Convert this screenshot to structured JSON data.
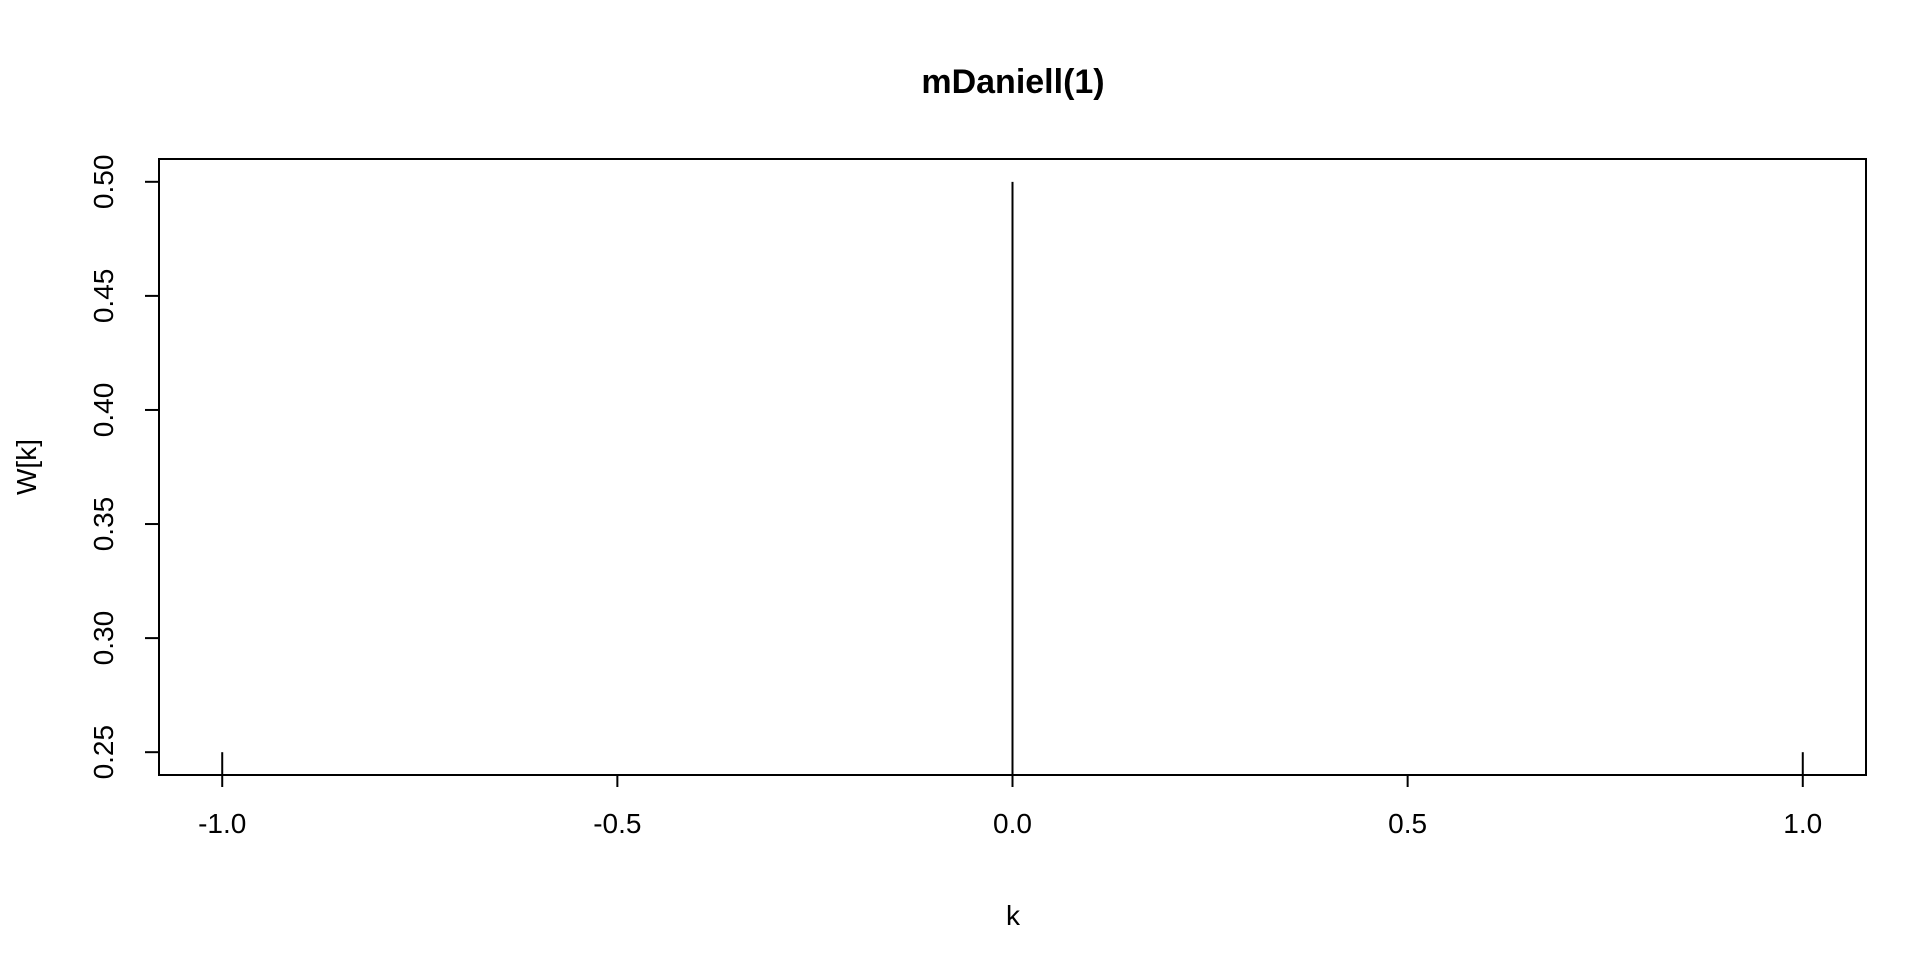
{
  "chart_data": {
    "type": "bar",
    "title": "mDaniell(1)",
    "xlabel": "k",
    "ylabel": "W[k]",
    "x": [
      -1,
      0,
      1
    ],
    "values": [
      0.25,
      0.5,
      0.25
    ],
    "xlim": [
      -1.08,
      1.08
    ],
    "ylim": [
      0.24,
      0.51
    ],
    "xticks": [
      -1.0,
      -0.5,
      0.0,
      0.5,
      1.0
    ],
    "xtick_labels": [
      "-1.0",
      "-0.5",
      "0.0",
      "0.5",
      "1.0"
    ],
    "yticks": [
      0.25,
      0.3,
      0.35,
      0.4,
      0.45,
      0.5
    ],
    "ytick_labels": [
      "0.25",
      "0.30",
      "0.35",
      "0.40",
      "0.45",
      "0.50"
    ],
    "grid": false,
    "legend": "none"
  }
}
